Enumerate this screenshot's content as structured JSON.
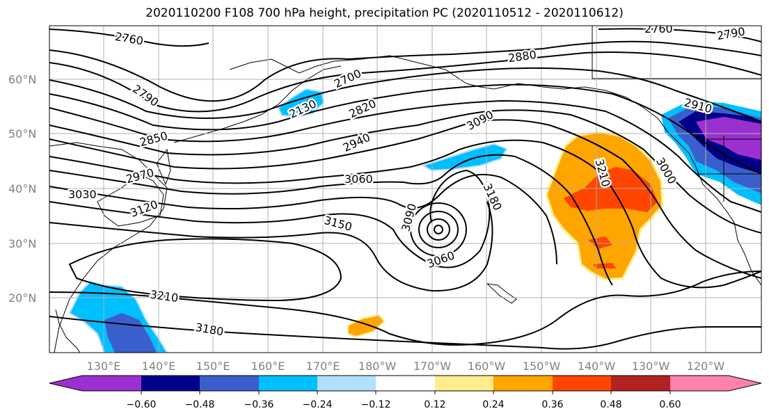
{
  "title": "2020110200 F108 700 hPa height, precipitation PC (2020110512 - 2020110612)",
  "lat_ticks": [
    "60°N",
    "50°N",
    "40°N",
    "30°N",
    "20°N"
  ],
  "lon_ticks": [
    "130°E",
    "140°E",
    "150°E",
    "160°E",
    "170°E",
    "180°W",
    "170°W",
    "160°W",
    "150°W",
    "140°W",
    "130°W",
    "120°W"
  ],
  "contour_labels": [
    "2760",
    "2760",
    "2790",
    "2700",
    "2790",
    "2880",
    "2820",
    "2130",
    "3090",
    "2910",
    "2850",
    "2940",
    "3210",
    "3000",
    "2970",
    "3060",
    "3030",
    "3180",
    "3120",
    "3090",
    "3150",
    "3060",
    "3210",
    "3180"
  ],
  "colorbar": {
    "ticks": [
      "−0.60",
      "−0.48",
      "−0.36",
      "−0.24",
      "−0.12",
      "0.12",
      "0.24",
      "0.36",
      "0.48",
      "0.60"
    ],
    "colors": [
      "#9b30d0",
      "#00008b",
      "#3a5fcd",
      "#00bfff",
      "#b2e0ff",
      "#ffffff",
      "#ffec8b",
      "#ffa500",
      "#ff4500",
      "#b22222",
      "#ff82ab"
    ]
  }
}
